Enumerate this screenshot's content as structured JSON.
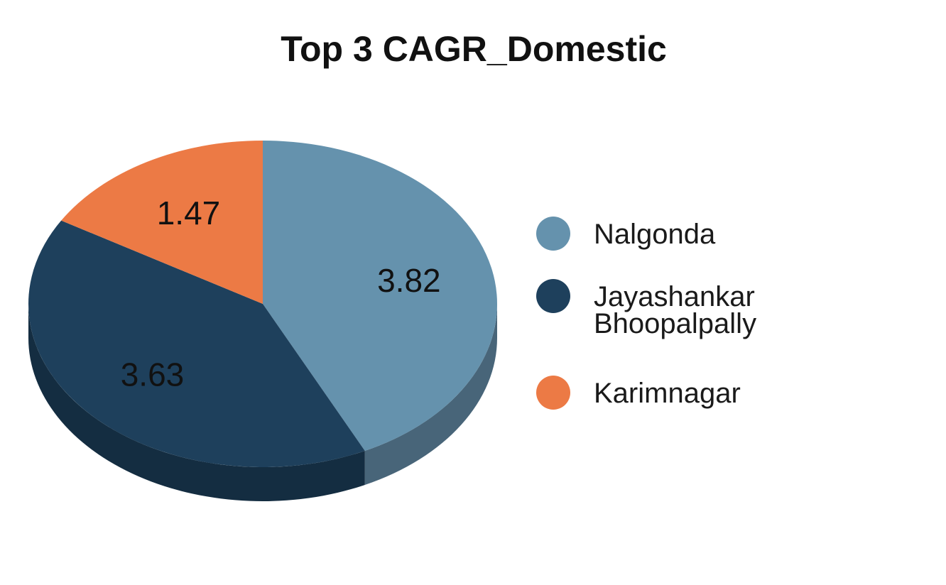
{
  "chart_data": {
    "type": "pie",
    "title": "Top 3 CAGR_Domestic",
    "categories": [
      "Nalgonda",
      "Jayashankar Bhoopalpally",
      "Karimnagar"
    ],
    "values": [
      3.82,
      3.63,
      1.47
    ],
    "data_labels": [
      "3.82",
      "3.63",
      "1.47"
    ],
    "legend": {
      "position": "right",
      "entries": [
        {
          "lines": [
            "Nalgonda"
          ]
        },
        {
          "lines": [
            "Jayashankar",
            "Bhoopalpally"
          ]
        },
        {
          "lines": [
            "Karimnagar"
          ]
        }
      ]
    },
    "colors": [
      "#6592ad",
      "#1e405c",
      "#ec7a45"
    ],
    "side_colors": [
      "#486579",
      "#142d41",
      "#a85530"
    ],
    "style": "3d-tilted",
    "start_angle_deg": 0,
    "direction": "clockwise"
  }
}
